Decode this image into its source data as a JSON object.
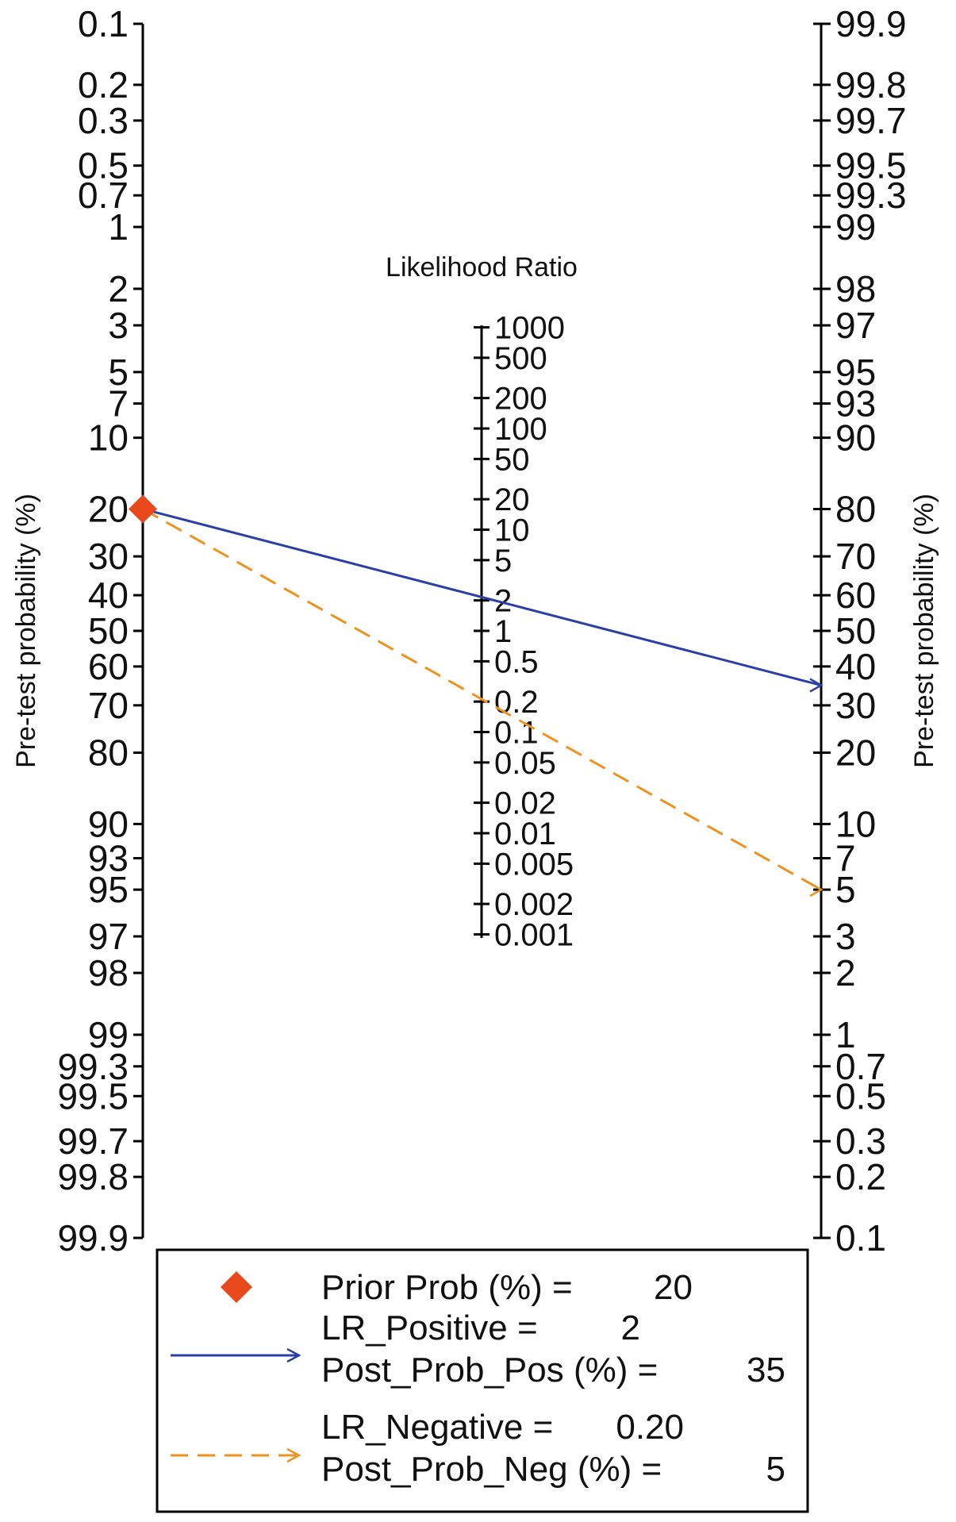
{
  "chart_data": {
    "type": "fagan-nomogram",
    "left_axis": {
      "label": "Pre-test probability (%)",
      "ticks": [
        "0.1",
        "0.2",
        "0.3",
        "0.5",
        "0.7",
        "1",
        "2",
        "3",
        "5",
        "7",
        "10",
        "20",
        "30",
        "40",
        "50",
        "60",
        "70",
        "80",
        "90",
        "93",
        "95",
        "97",
        "98",
        "99",
        "99.3",
        "99.5",
        "99.7",
        "99.8",
        "99.9"
      ]
    },
    "right_axis": {
      "label": "Pre-test probability (%)",
      "ticks": [
        "99.9",
        "99.8",
        "99.7",
        "99.5",
        "99.3",
        "99",
        "98",
        "97",
        "95",
        "93",
        "90",
        "80",
        "70",
        "60",
        "50",
        "40",
        "30",
        "20",
        "10",
        "7",
        "5",
        "3",
        "2",
        "1",
        "0.7",
        "0.5",
        "0.3",
        "0.2",
        "0.1"
      ]
    },
    "middle_axis": {
      "label": "Likelihood Ratio",
      "ticks": [
        "1000",
        "500",
        "200",
        "100",
        "50",
        "20",
        "10",
        "5",
        "2",
        "1",
        "0.5",
        "0.2",
        "0.1",
        "0.05",
        "0.02",
        "0.01",
        "0.005",
        "0.002",
        "0.001"
      ]
    },
    "prior_prob": 20,
    "lr_positive": 2,
    "post_prob_pos": 35,
    "lr_negative": 0.2,
    "post_prob_neg": 5,
    "colors": {
      "prior": "#e8481c",
      "positive": "#2b3fa6",
      "negative": "#f0921e",
      "axis": "#000000"
    }
  },
  "legend": {
    "prior": {
      "label": "Prior Prob (%) =",
      "value": "20"
    },
    "positive": {
      "line1_label": "LR_Positive =",
      "line1_value": "2",
      "line2_label": "Post_Prob_Pos (%) =",
      "line2_value": "35"
    },
    "negative": {
      "line1_label": "LR_Negative =",
      "line1_value": "0.20",
      "line2_label": "Post_Prob_Neg (%) =",
      "line2_value": "5"
    }
  }
}
